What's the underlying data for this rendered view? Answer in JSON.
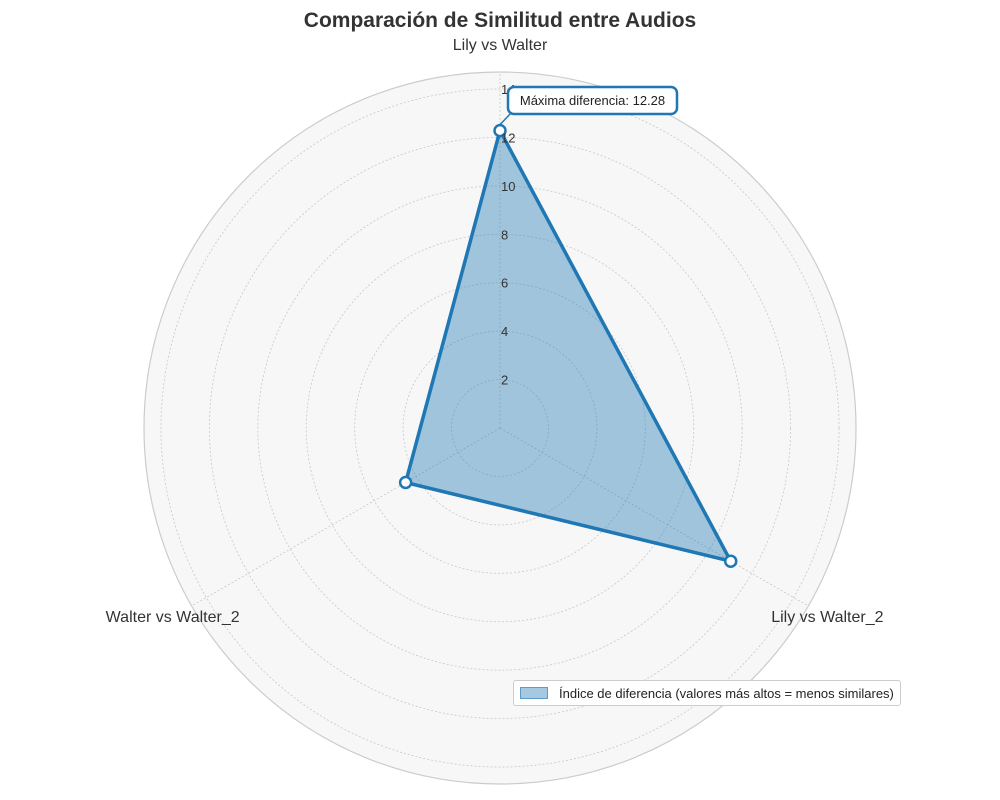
{
  "chart_data": {
    "type": "radar",
    "title": "Comparación de Similitud entre Audios",
    "categories": [
      "Lily vs Walter",
      "Lily vs Walter_2",
      "Walter vs Walter_2"
    ],
    "series": [
      {
        "name": "Índice de diferencia (valores más altos = menos similares)",
        "values": [
          12.28,
          11.0,
          4.5
        ],
        "color": "#1f77b4"
      }
    ],
    "radial_ticks": [
      "2",
      "4",
      "6",
      "8",
      "10",
      "12",
      "14"
    ],
    "rlim": [
      0,
      14.7
    ],
    "grid": true,
    "legend_position": "bottom-right",
    "annotation": {
      "text": "Máxima diferencia: 12.28",
      "category": "Lily vs Walter"
    }
  }
}
